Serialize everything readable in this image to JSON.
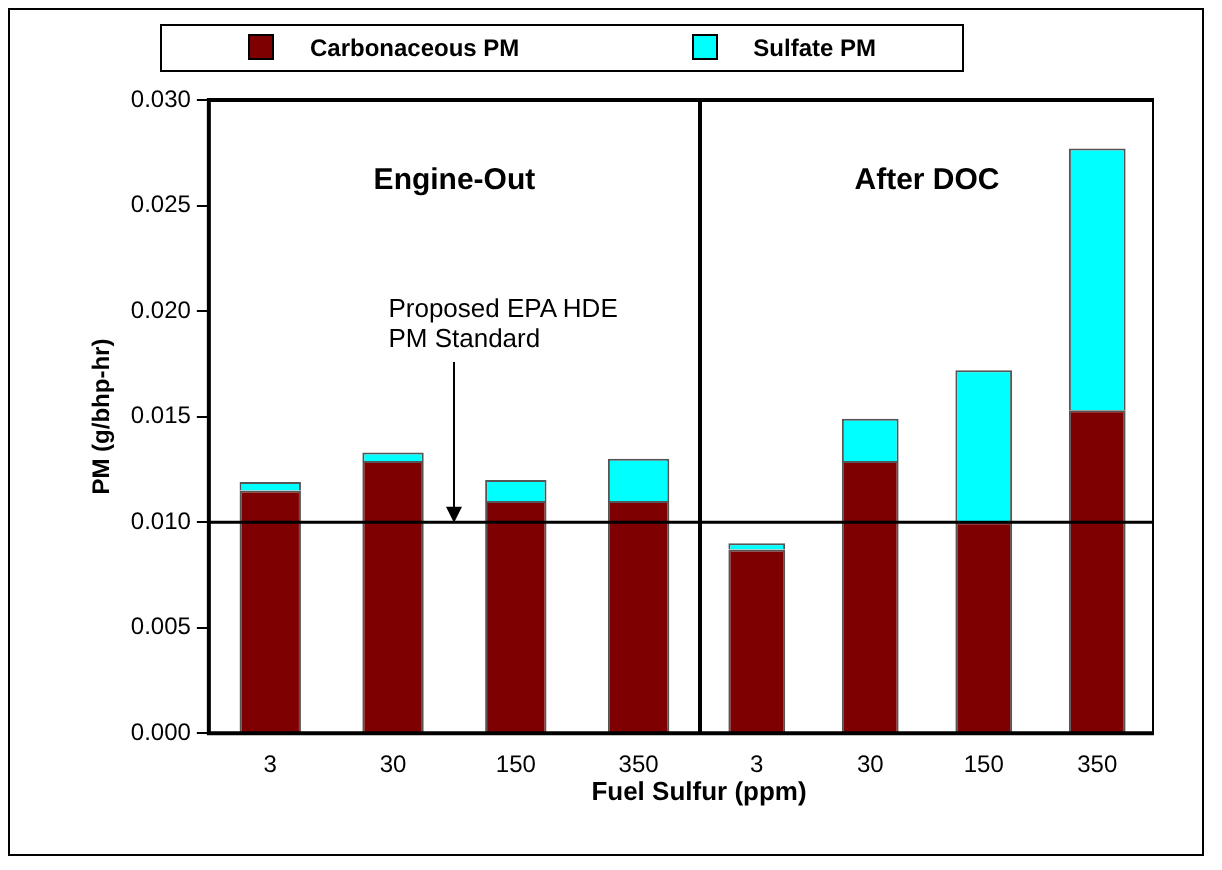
{
  "chart_data": [
    {
      "type": "bar",
      "stacked": true,
      "xlabel": "Fuel Sulfur (ppm)",
      "ylabel": "PM (g/bhp-hr)",
      "categories": [
        "3",
        "30",
        "150",
        "350"
      ],
      "series": [
        {
          "name": "Carbonaceous PM",
          "color": "#7f0000",
          "values": [
            0.0115,
            0.0129,
            0.011,
            0.011
          ]
        },
        {
          "name": "Sulfate PM",
          "color": "#00ffff",
          "values": [
            0.0004,
            0.0004,
            0.001,
            0.002
          ]
        }
      ],
      "ylim": [
        0,
        0.03
      ],
      "yticks": [
        {
          "value": 0,
          "label": "0.000"
        },
        {
          "value": 0.005,
          "label": "0.005"
        },
        {
          "value": 0.01,
          "label": "0.010"
        },
        {
          "value": 0.015,
          "label": "0.015"
        },
        {
          "value": 0.02,
          "label": "0.020"
        },
        {
          "value": 0.025,
          "label": "0.025"
        },
        {
          "value": 0.03,
          "label": "0.030"
        }
      ],
      "ref_lines": [
        {
          "axis": "y",
          "value": 0.01,
          "label": "Proposed EPA HDE PM Standard"
        }
      ],
      "annotations": [
        "Engine-Out"
      ],
      "legend": "top",
      "grid": false
    },
    {
      "type": "bar",
      "stacked": true,
      "categories": [
        "3",
        "30",
        "150",
        "350"
      ],
      "series": [
        {
          "color": "#7f0000",
          "values": [
            0.0087,
            0.0129,
            0.01,
            0.0153
          ]
        },
        {
          "color": "#00ffff",
          "values": [
            0.0003,
            0.002,
            0.0072,
            0.0124
          ]
        }
      ],
      "ylim": [
        0,
        0.03
      ],
      "tick_labels": "x",
      "ref_lines": [
        {
          "axis": "y",
          "value": 0.01
        }
      ],
      "annotations": [
        "After DOC"
      ],
      "grid": false
    }
  ]
}
